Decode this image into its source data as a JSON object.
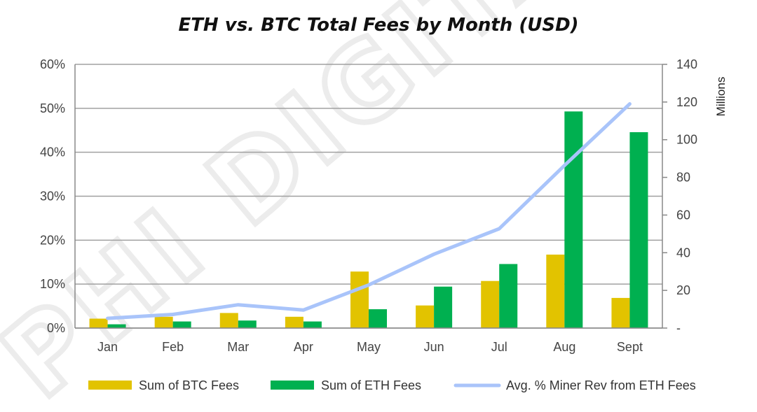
{
  "watermark": "PHI DIGITAL",
  "chart_data": {
    "type": "bar",
    "title": "ETH vs. BTC Total Fees by Month (USD)",
    "categories": [
      "Jan",
      "Feb",
      "Mar",
      "Apr",
      "May",
      "Jun",
      "Jul",
      "Aug",
      "Sept"
    ],
    "y_left": {
      "ylim": [
        0,
        0.6
      ],
      "ticks": [
        "0%",
        "10%",
        "20%",
        "30%",
        "40%",
        "50%",
        "60%"
      ]
    },
    "y_right": {
      "label": "Millions",
      "ylim": [
        0,
        140
      ],
      "ticks": [
        "-",
        "20",
        "40",
        "60",
        "80",
        "100",
        "120",
        "140"
      ]
    },
    "grid": true,
    "legend_position": "bottom",
    "series": [
      {
        "name": "Sum of BTC Fees",
        "type": "bar",
        "axis": "right",
        "color": "#E2C300",
        "values": [
          5,
          6,
          8,
          6,
          30,
          12,
          25,
          39,
          16
        ]
      },
      {
        "name": "Sum of ETH Fees",
        "type": "bar",
        "axis": "right",
        "color": "#00B050",
        "values": [
          2,
          3.5,
          4,
          3.5,
          10,
          22,
          34,
          115,
          104
        ]
      },
      {
        "name": "Avg. % Miner Rev from ETH Fees",
        "type": "line",
        "axis": "left",
        "color": "#A9C4FA",
        "values": [
          0.022,
          0.031,
          0.053,
          0.041,
          0.098,
          0.168,
          0.226,
          0.37,
          0.51
        ]
      }
    ]
  }
}
